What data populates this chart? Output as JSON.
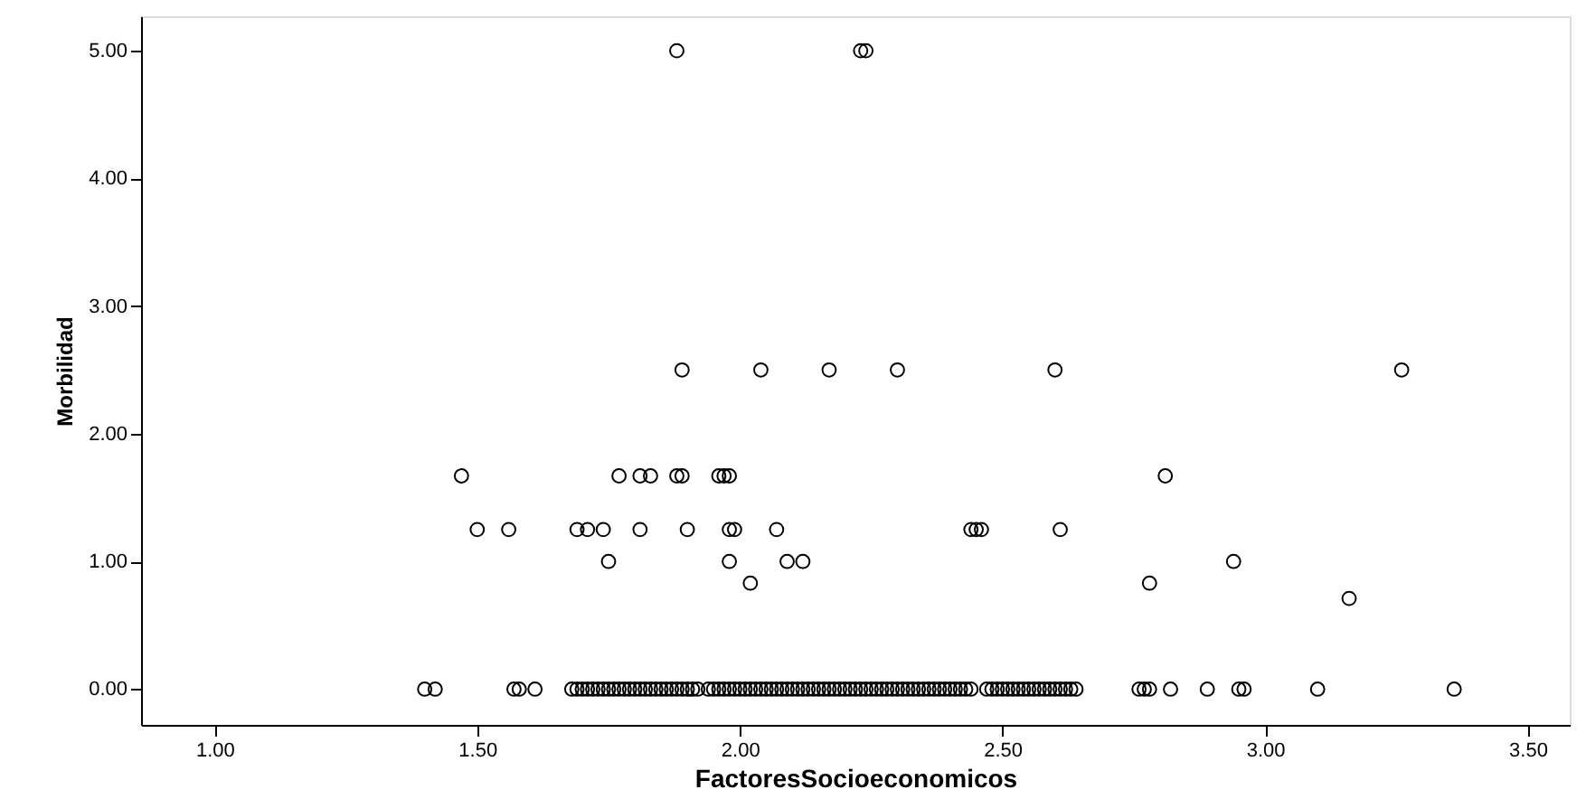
{
  "chart_data": {
    "type": "scatter",
    "xlabel": "FactoresSocioeconomicos",
    "ylabel": "Morbilidad",
    "xlim": [
      0.86,
      3.58
    ],
    "ylim": [
      -0.28,
      5.27
    ],
    "xticks": [
      {
        "value": 1,
        "label": "1.00"
      },
      {
        "value": 1.5,
        "label": "1.50"
      },
      {
        "value": 2,
        "label": "2.00"
      },
      {
        "value": 2.5,
        "label": "2.50"
      },
      {
        "value": 3,
        "label": "3.00"
      },
      {
        "value": 3.5,
        "label": "3.50"
      }
    ],
    "yticks": [
      {
        "value": 0,
        "label": "0.00"
      },
      {
        "value": 1,
        "label": "1.00"
      },
      {
        "value": 2,
        "label": "2.00"
      },
      {
        "value": 3,
        "label": "3.00"
      },
      {
        "value": 4,
        "label": "4.00"
      },
      {
        "value": 5,
        "label": "5.00"
      }
    ],
    "grid": false,
    "marker": "circle",
    "series": [
      {
        "color": "#000000",
        "x": [
          1.88,
          2.23,
          2.24,
          1.89,
          2.04,
          2.17,
          2.3,
          2.6,
          3.26,
          1.47,
          1.77,
          1.81,
          1.83,
          1.88,
          1.89,
          1.96,
          1.97,
          1.98,
          2.81,
          1.5,
          1.56,
          1.69,
          1.71,
          1.74,
          1.81,
          1.9,
          1.98,
          1.99,
          2.07,
          2.44,
          2.45,
          2.46,
          2.61,
          1.75,
          1.98,
          2.09,
          2.12,
          2.94,
          2.02,
          2.78,
          3.16,
          1.4,
          1.42,
          1.57,
          1.58,
          1.61,
          1.68,
          1.69,
          1.7,
          1.71,
          1.72,
          1.73,
          1.74,
          1.75,
          1.76,
          1.77,
          1.78,
          1.79,
          1.8,
          1.81,
          1.82,
          1.83,
          1.84,
          1.85,
          1.86,
          1.87,
          1.88,
          1.89,
          1.9,
          1.91,
          1.92,
          1.94,
          1.95,
          1.96,
          1.97,
          1.98,
          1.99,
          2.0,
          2.01,
          2.02,
          2.03,
          2.04,
          2.05,
          2.06,
          2.07,
          2.08,
          2.09,
          2.1,
          2.11,
          2.12,
          2.13,
          2.14,
          2.15,
          2.16,
          2.17,
          2.18,
          2.19,
          2.2,
          2.21,
          2.22,
          2.23,
          2.24,
          2.25,
          2.26,
          2.27,
          2.28,
          2.29,
          2.3,
          2.31,
          2.32,
          2.33,
          2.34,
          2.35,
          2.36,
          2.37,
          2.38,
          2.39,
          2.4,
          2.41,
          2.42,
          2.43,
          2.44,
          2.47,
          2.48,
          2.49,
          2.5,
          2.51,
          2.52,
          2.53,
          2.54,
          2.55,
          2.56,
          2.57,
          2.58,
          2.59,
          2.6,
          2.61,
          2.62,
          2.63,
          2.64,
          2.76,
          2.77,
          2.78,
          2.82,
          2.89,
          2.95,
          2.96,
          3.1,
          3.36
        ],
        "values": [
          5,
          5,
          5,
          2.5,
          2.5,
          2.5,
          2.5,
          2.5,
          2.5,
          1.67,
          1.67,
          1.67,
          1.67,
          1.67,
          1.67,
          1.67,
          1.67,
          1.67,
          1.67,
          1.25,
          1.25,
          1.25,
          1.25,
          1.25,
          1.25,
          1.25,
          1.25,
          1.25,
          1.25,
          1.25,
          1.25,
          1.25,
          1.25,
          1,
          1,
          1,
          1,
          1,
          0.83,
          0.83,
          0.71,
          0,
          0,
          0,
          0,
          0,
          0,
          0,
          0,
          0,
          0,
          0,
          0,
          0,
          0,
          0,
          0,
          0,
          0,
          0,
          0,
          0,
          0,
          0,
          0,
          0,
          0,
          0,
          0,
          0,
          0,
          0,
          0,
          0,
          0,
          0,
          0,
          0,
          0,
          0,
          0,
          0,
          0,
          0,
          0,
          0,
          0,
          0,
          0,
          0,
          0,
          0,
          0,
          0,
          0,
          0,
          0,
          0,
          0,
          0,
          0,
          0,
          0,
          0,
          0,
          0,
          0,
          0,
          0,
          0,
          0,
          0,
          0,
          0,
          0,
          0,
          0,
          0,
          0,
          0,
          0,
          0,
          0,
          0,
          0,
          0,
          0,
          0,
          0,
          0,
          0,
          0,
          0,
          0,
          0,
          0,
          0,
          0,
          0,
          0,
          0,
          0,
          0,
          0,
          0,
          0,
          0,
          0,
          0
        ]
      }
    ]
  }
}
